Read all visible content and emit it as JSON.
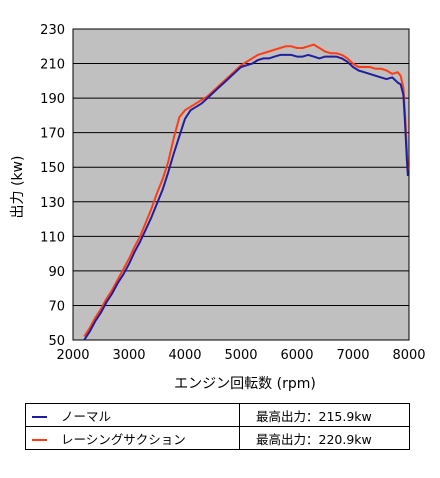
{
  "chart_data": {
    "type": "line",
    "xlabel": "エンジン回転数 (rpm)",
    "ylabel": "出力 (kw)",
    "xlim": [
      2000,
      8000
    ],
    "ylim": [
      50,
      230
    ],
    "xticks": [
      "2000",
      "3000",
      "4000",
      "5000",
      "6000",
      "7000",
      "8000"
    ],
    "yticks": [
      "50",
      "70",
      "90",
      "110",
      "130",
      "150",
      "170",
      "190",
      "210",
      "230"
    ],
    "grid": "horizontal",
    "background": "#c0c0c0",
    "series": [
      {
        "name": "ノーマル",
        "color": "#1f1f9e",
        "max_label": "最高出力：215.9kw",
        "x": [
          2200,
          2300,
          2400,
          2500,
          2600,
          2700,
          2800,
          2900,
          3000,
          3100,
          3200,
          3300,
          3400,
          3500,
          3600,
          3700,
          3800,
          3900,
          4000,
          4100,
          4200,
          4300,
          4400,
          4500,
          4600,
          4700,
          4800,
          4900,
          5000,
          5100,
          5200,
          5300,
          5400,
          5500,
          5600,
          5700,
          5800,
          5900,
          6000,
          6100,
          6200,
          6300,
          6400,
          6500,
          6600,
          6700,
          6800,
          6900,
          7000,
          7100,
          7200,
          7300,
          7400,
          7500,
          7600,
          7700,
          7800,
          7850,
          7900,
          7930,
          7960,
          7980
        ],
        "y": [
          50,
          55,
          61,
          66,
          72,
          77,
          83,
          88,
          94,
          101,
          107,
          114,
          121,
          129,
          137,
          147,
          158,
          168,
          178,
          183,
          185,
          187,
          190,
          193,
          196,
          199,
          202,
          205,
          208,
          209,
          210,
          212,
          213,
          213,
          214,
          215,
          215,
          215,
          214,
          214,
          215,
          214,
          213,
          214,
          214,
          214,
          213,
          211,
          208,
          206,
          205,
          204,
          203,
          202,
          201,
          202,
          199,
          198,
          192,
          175,
          155,
          145
        ]
      },
      {
        "name": "レーシングサクション",
        "color": "#ff3c14",
        "max_label": "最高出力：220.9kw",
        "x": [
          2200,
          2300,
          2400,
          2500,
          2600,
          2700,
          2800,
          2900,
          3000,
          3100,
          3200,
          3300,
          3400,
          3500,
          3600,
          3700,
          3800,
          3900,
          4000,
          4100,
          4200,
          4300,
          4400,
          4500,
          4600,
          4700,
          4800,
          4900,
          5000,
          5100,
          5200,
          5300,
          5400,
          5500,
          5600,
          5700,
          5800,
          5900,
          6000,
          6100,
          6200,
          6300,
          6400,
          6500,
          6600,
          6700,
          6800,
          6900,
          7000,
          7100,
          7200,
          7300,
          7400,
          7500,
          7600,
          7700,
          7800,
          7850,
          7900,
          7930,
          7960,
          7980
        ],
        "y": [
          52,
          57,
          63,
          68,
          74,
          79,
          85,
          91,
          97,
          104,
          110,
          118,
          126,
          135,
          143,
          153,
          167,
          179,
          183,
          185,
          187,
          189,
          191,
          194,
          197,
          200,
          203,
          206,
          209,
          211,
          213,
          215,
          216,
          217,
          218,
          219,
          220,
          220,
          219,
          219,
          220,
          221,
          219,
          217,
          216,
          216,
          215,
          213,
          210,
          208,
          208,
          208,
          207,
          207,
          206,
          204,
          205,
          203,
          196,
          180,
          160,
          148
        ]
      }
    ]
  }
}
